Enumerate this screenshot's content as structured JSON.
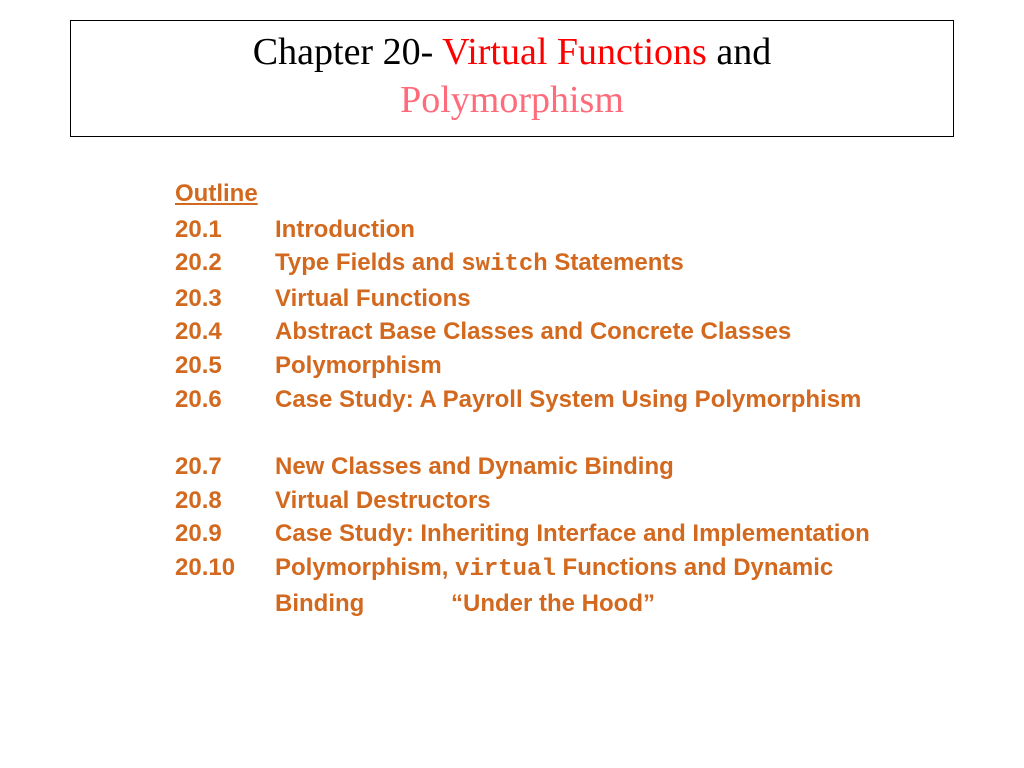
{
  "title": {
    "prefix": "Chapter 20- ",
    "red": "Virtual Functions",
    "mid": " and ",
    "pink": "Polymorphism"
  },
  "outline_label": "Outline",
  "sections": {
    "s1": {
      "num": "20.1",
      "text": "Introduction"
    },
    "s2": {
      "num": "20.2",
      "pre": "Type Fields and ",
      "code": "switch",
      "post": " Statements"
    },
    "s3": {
      "num": "20.3",
      "text": "Virtual Functions"
    },
    "s4": {
      "num": "20.4",
      "text": "Abstract Base Classes and Concrete Classes"
    },
    "s5": {
      "num": "20.5",
      "text": "Polymorphism"
    },
    "s6": {
      "num": "20.6",
      "text": "Case Study: A Payroll System Using Polymorphism"
    },
    "s7": {
      "num": "20.7",
      "text": "New Classes and Dynamic Binding"
    },
    "s8": {
      "num": "20.8",
      "text": "Virtual Destructors"
    },
    "s9": {
      "num": "20.9",
      "text": "Case Study: Inheriting Interface and Implementation"
    },
    "s10": {
      "num": "20.10",
      "pre": "Polymorphism, ",
      "code": "virtual",
      "post": " Functions and Dynamic"
    },
    "s10b": "Binding             “Under the Hood”"
  },
  "colors": {
    "outline": "#d2691e",
    "title_red": "#ff0000",
    "title_pink": "#ff6b7a",
    "black": "#000000",
    "background": "#ffffff"
  },
  "typography": {
    "title_font": "Times New Roman",
    "title_size_pt": 29,
    "body_font": "Arial",
    "body_size_pt": 18,
    "body_weight": "bold"
  }
}
